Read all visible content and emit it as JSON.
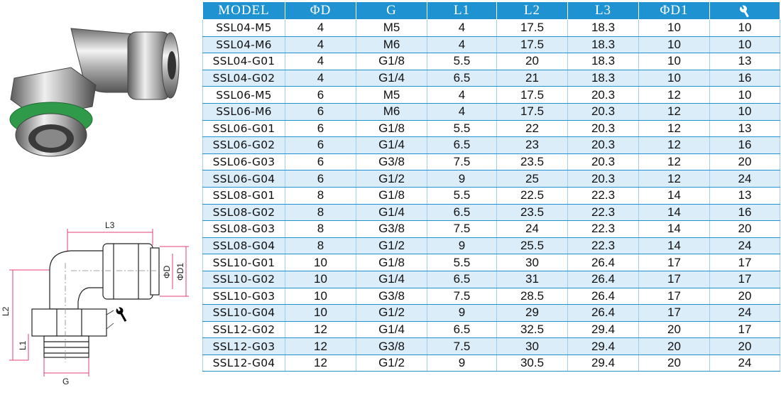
{
  "table": {
    "headers": [
      "MODEL",
      "ΦD",
      "G",
      "L1",
      "L2",
      "L3",
      "ΦD1",
      ""
    ],
    "wrench_header_icon": "wrench-icon",
    "rows": [
      [
        "SSL04-M5",
        "4",
        "M5",
        "4",
        "17.5",
        "18.3",
        "10",
        "10"
      ],
      [
        "SSL04-M6",
        "4",
        "M6",
        "4",
        "17.5",
        "18.3",
        "10",
        "10"
      ],
      [
        "SSL04-G01",
        "4",
        "G1/8",
        "5.5",
        "20",
        "18.3",
        "10",
        "13"
      ],
      [
        "SSL04-G02",
        "4",
        "G1/4",
        "6.5",
        "21",
        "18.3",
        "10",
        "16"
      ],
      [
        "SSL06-M5",
        "6",
        "M5",
        "4",
        "17.5",
        "20.3",
        "12",
        "10"
      ],
      [
        "SSL06-M6",
        "6",
        "M6",
        "4",
        "17.5",
        "20.3",
        "12",
        "10"
      ],
      [
        "SSL06-G01",
        "6",
        "G1/8",
        "5.5",
        "22",
        "20.3",
        "12",
        "13"
      ],
      [
        "SSL06-G02",
        "6",
        "G1/4",
        "6.5",
        "23",
        "20.3",
        "12",
        "16"
      ],
      [
        "SSL06-G03",
        "6",
        "G3/8",
        "7.5",
        "23.5",
        "20.3",
        "12",
        "20"
      ],
      [
        "SSL06-G04",
        "6",
        "G1/2",
        "9",
        "25",
        "20.3",
        "12",
        "24"
      ],
      [
        "SSL08-G01",
        "8",
        "G1/8",
        "5.5",
        "22.5",
        "22.3",
        "14",
        "13"
      ],
      [
        "SSL08-G02",
        "8",
        "G1/4",
        "6.5",
        "23.5",
        "22.3",
        "14",
        "16"
      ],
      [
        "SSL08-G03",
        "8",
        "G3/8",
        "7.5",
        "24",
        "22.3",
        "14",
        "20"
      ],
      [
        "SSL08-G04",
        "8",
        "G1/2",
        "9",
        "25.5",
        "22.3",
        "14",
        "24"
      ],
      [
        "SSL10-G01",
        "10",
        "G1/8",
        "5.5",
        "30",
        "26.4",
        "17",
        "17"
      ],
      [
        "SSL10-G02",
        "10",
        "G1/4",
        "6.5",
        "31",
        "26.4",
        "17",
        "17"
      ],
      [
        "SSL10-G03",
        "10",
        "G3/8",
        "7.5",
        "28.5",
        "26.4",
        "17",
        "20"
      ],
      [
        "SSL10-G04",
        "10",
        "G1/2",
        "9",
        "29",
        "26.4",
        "17",
        "24"
      ],
      [
        "SSL12-G02",
        "12",
        "G1/4",
        "6.5",
        "32.5",
        "29.4",
        "20",
        "17"
      ],
      [
        "SSL12-G03",
        "12",
        "G3/8",
        "7.5",
        "30",
        "29.4",
        "20",
        "20"
      ],
      [
        "SSL12-G04",
        "12",
        "G1/2",
        "9",
        "30.5",
        "29.4",
        "20",
        "24"
      ]
    ]
  },
  "drawing": {
    "labels": {
      "l3": "L3",
      "l2": "L2",
      "l1": "L1",
      "g": "G",
      "phi_d": "ΦD",
      "phi_d1": "ΦD1"
    },
    "line_color": "#e0407a"
  }
}
